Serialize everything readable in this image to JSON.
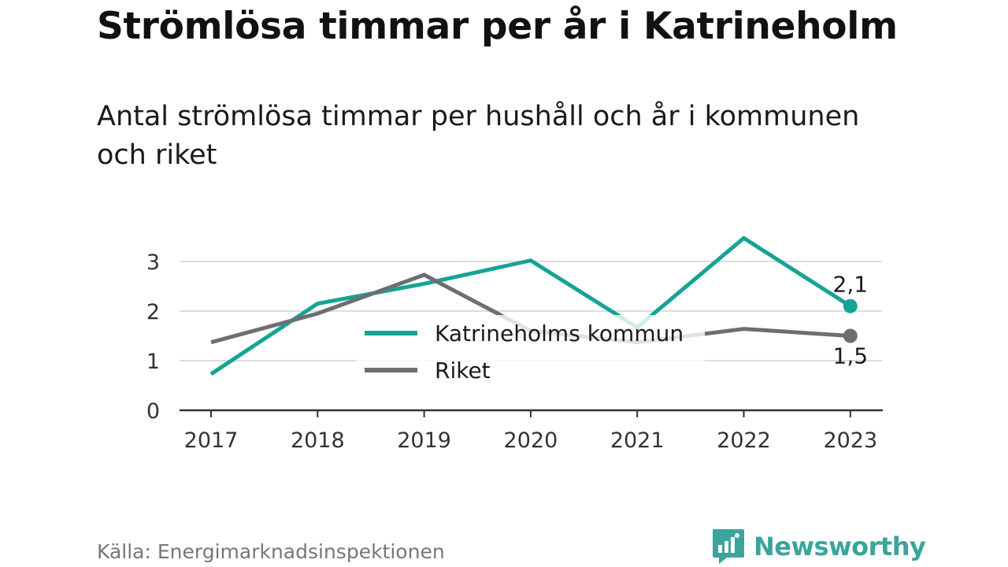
{
  "title": "Strömlösa timmar per år i Katrineholm",
  "subtitle": "Antal strömlösa timmar per hushåll och år i kommunen och riket",
  "source": "Källa: Energimarknadsinspektionen",
  "brand": {
    "name": "Newsworthy",
    "icon": "newsworthy-logo-icon"
  },
  "colors": {
    "primary": "#16a394",
    "secondary": "#6e6d73",
    "grid": "#dddddd",
    "axis": "#333333"
  },
  "chart_data": {
    "type": "line",
    "categories": [
      "2017",
      "2018",
      "2019",
      "2020",
      "2021",
      "2022",
      "2023"
    ],
    "series": [
      {
        "name": "Katrineholms kommun",
        "color": "#16a394",
        "values": [
          0.73,
          2.15,
          2.55,
          3.02,
          1.67,
          3.47,
          2.1
        ]
      },
      {
        "name": "Riket",
        "color": "#6e6d73",
        "values": [
          1.37,
          1.95,
          2.73,
          1.6,
          1.37,
          1.64,
          1.5
        ]
      }
    ],
    "end_labels": [
      "2,1",
      "1,5"
    ],
    "ylim": [
      0,
      3.5
    ],
    "yticks": [
      0,
      1,
      2,
      3
    ],
    "ytick_labels": [
      "0",
      "1",
      "2",
      "3"
    ],
    "grid": true,
    "legend_position": "center"
  }
}
